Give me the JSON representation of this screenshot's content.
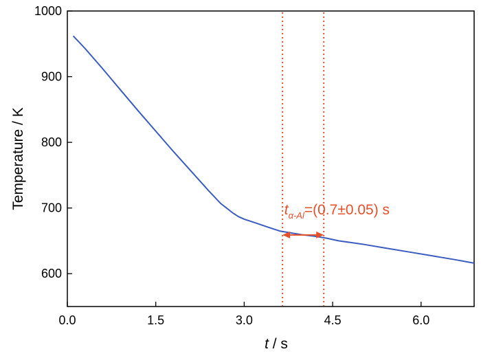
{
  "chart_data": {
    "type": "line",
    "xlabel_var": "t",
    "xlabel_unit": " / s",
    "ylabel": "Temperature / K",
    "xlim": [
      0.0,
      6.9
    ],
    "ylim": [
      550,
      1000
    ],
    "x_ticks": [
      0.0,
      1.5,
      3.0,
      4.5,
      6.0
    ],
    "x_tick_labels": [
      "0.0",
      "1.5",
      "3.0",
      "4.5",
      "6.0"
    ],
    "y_ticks": [
      600,
      700,
      800,
      900,
      1000
    ],
    "y_tick_labels": [
      "600",
      "700",
      "800",
      "900",
      "1000"
    ],
    "grid": false,
    "series": [
      {
        "color": "#3a5bbf",
        "x": [
          0.1,
          0.3,
          0.6,
          0.9,
          1.2,
          1.5,
          1.8,
          2.1,
          2.4,
          2.6,
          2.8,
          2.9,
          3.0,
          3.2,
          3.4,
          3.6,
          3.8,
          4.0,
          4.2,
          4.4,
          4.6,
          5.0,
          5.4,
          5.8,
          6.2,
          6.6,
          6.9
        ],
        "y": [
          962,
          943,
          912,
          880,
          848,
          817,
          786,
          756,
          726,
          707,
          693,
          687,
          683,
          677,
          671,
          665,
          662,
          659,
          657,
          654,
          650,
          645,
          639,
          633,
          627,
          621,
          616
        ]
      }
    ],
    "reference_lines": [
      {
        "x": 3.65,
        "style": "dotted",
        "color": "#e4502a"
      },
      {
        "x": 4.35,
        "style": "dotted",
        "color": "#e4502a"
      }
    ],
    "annotation": {
      "color": "#e4502a",
      "var": "t",
      "subscript": "α-Al",
      "value_text": "=(0.7±0.05) s",
      "arrow_from_x": 3.65,
      "arrow_to_x": 4.35,
      "arrow_y": 659,
      "text_anchor_x": 3.68,
      "text_anchor_y": 690
    }
  }
}
